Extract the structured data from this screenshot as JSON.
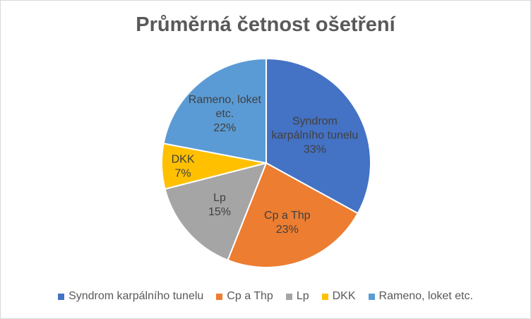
{
  "chart_data": {
    "type": "pie",
    "title": "Průměrná četnost ošetření",
    "categories": [
      "Syndrom karpálního tunelu",
      "Cp a Thp",
      "Lp",
      "DKK",
      "Rameno, loket etc."
    ],
    "values": [
      33,
      23,
      15,
      7,
      22
    ],
    "data_labels": [
      {
        "lines": [
          "Syndrom",
          "karpálního tunelu"
        ],
        "pct": "33%"
      },
      {
        "lines": [
          "Cp a Thp"
        ],
        "pct": "23%"
      },
      {
        "lines": [
          "Lp"
        ],
        "pct": "15%"
      },
      {
        "lines": [
          "DKK"
        ],
        "pct": "7%"
      },
      {
        "lines": [
          "Rameno, loket",
          "etc."
        ],
        "pct": "22%"
      }
    ],
    "colors": [
      "#4472c4",
      "#ed7d31",
      "#a5a5a5",
      "#ffc000",
      "#5b9bd5"
    ],
    "legend_position": "bottom",
    "start_angle_deg": 0,
    "direction": "clockwise"
  }
}
